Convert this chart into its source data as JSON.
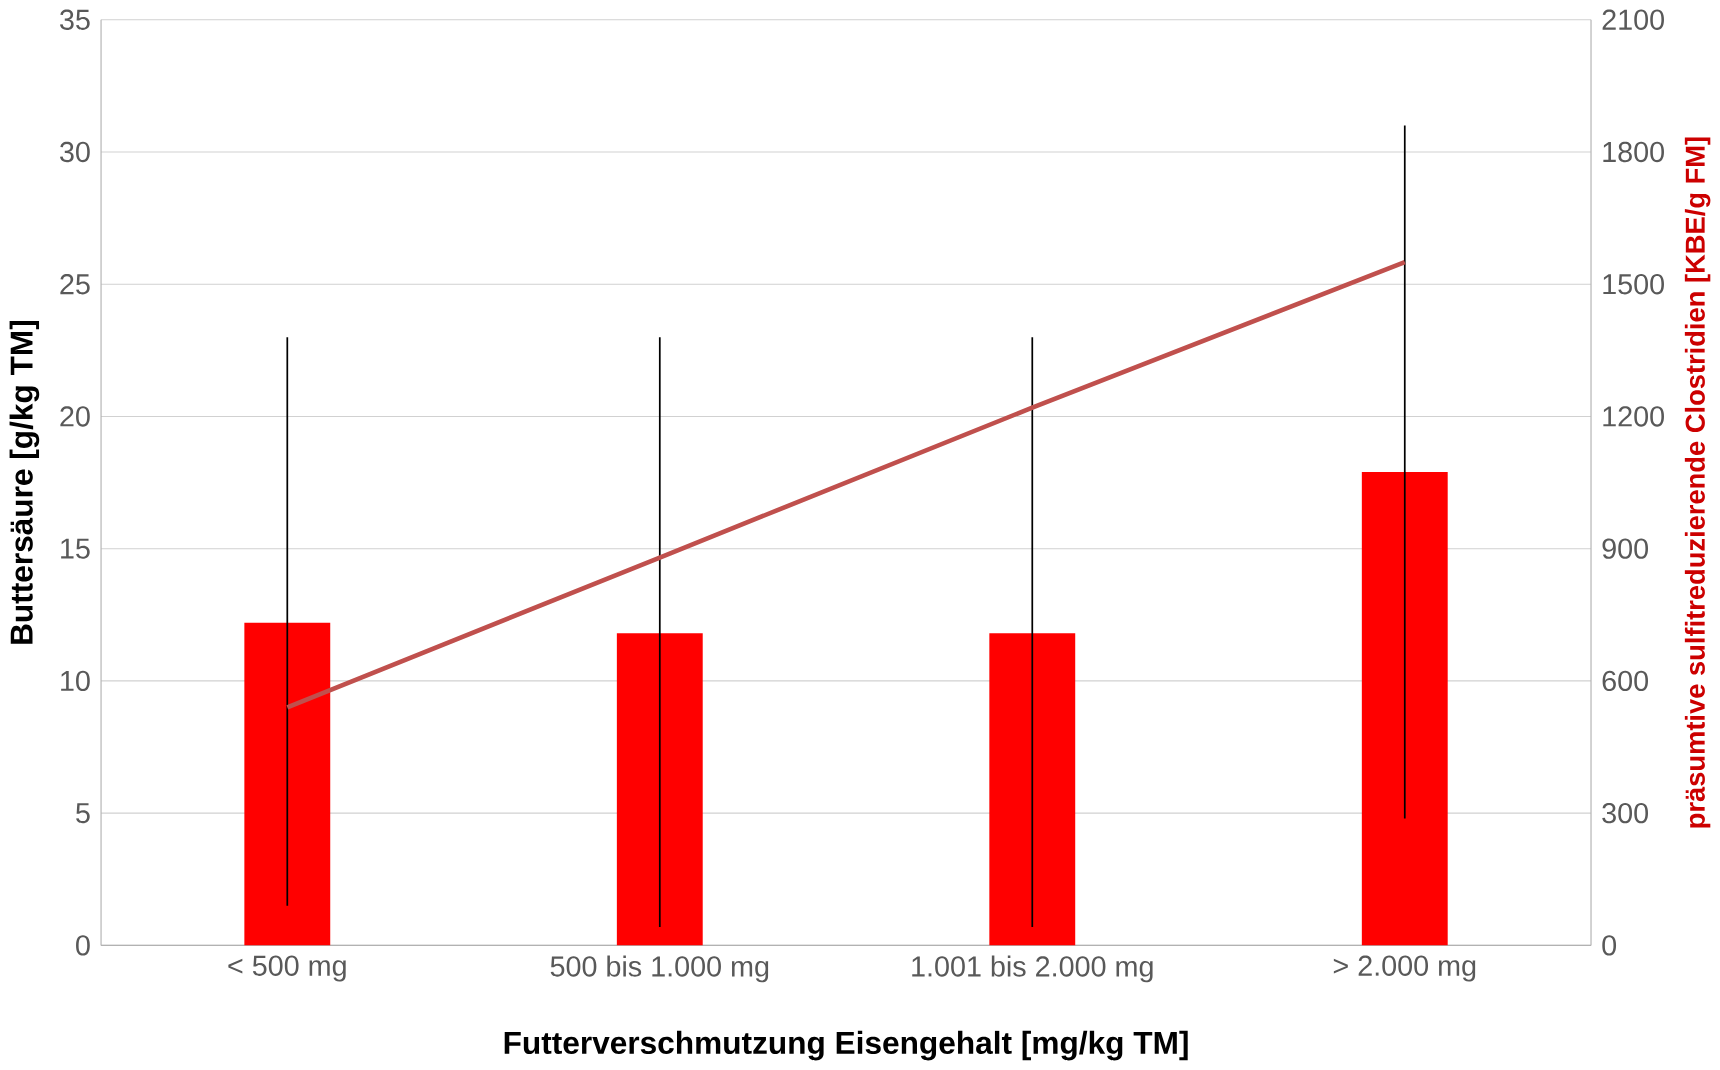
{
  "chart_data": {
    "type": "bar",
    "xlabel": "Futterverschmutzung Eisengehalt [mg/kg TM]",
    "ylabel": "Buttersäure [g/kg TM]",
    "y2label": "präsumtive sulfitreduzierende Clostridien [KBE/g FM]",
    "categories": [
      "< 500 mg",
      "500 bis 1.000 mg",
      "1.001 bis 2.000 mg",
      "> 2.000 mg"
    ],
    "series": [
      {
        "color": "#ff0000",
        "values": [
          12.2,
          11.8,
          11.8,
          17.9
        ],
        "errors": [
          [
            1.5,
            23
          ],
          [
            0.7,
            23
          ],
          [
            0.7,
            23
          ],
          [
            4.8,
            31
          ]
        ]
      },
      {
        "type": "line",
        "axis": "y2",
        "color": "#c0504d",
        "values": [
          540,
          880,
          1220,
          1550
        ]
      }
    ],
    "ylim": [
      0,
      35
    ],
    "yticks": [
      0,
      5,
      10,
      15,
      20,
      25,
      30,
      35
    ],
    "y2lim": [
      0,
      2100
    ],
    "y2ticks": [
      0,
      300,
      600,
      900,
      1200,
      1500,
      1800,
      2100
    ],
    "grid": "y"
  }
}
